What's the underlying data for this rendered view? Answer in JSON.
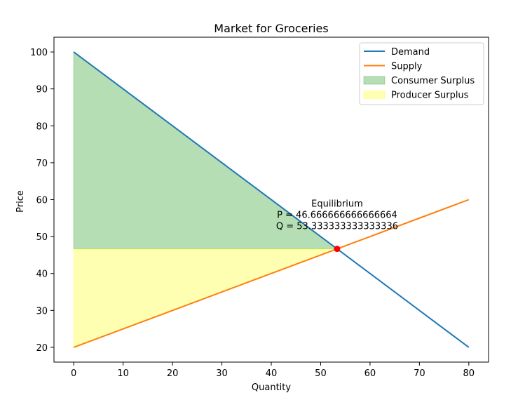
{
  "chart_data": {
    "type": "line",
    "title": "Market for Groceries",
    "xlabel": "Quantity",
    "ylabel": "Price",
    "xlim": [
      -4,
      84
    ],
    "ylim": [
      16,
      104
    ],
    "xticks": [
      0,
      10,
      20,
      30,
      40,
      50,
      60,
      70,
      80
    ],
    "yticks": [
      20,
      30,
      40,
      50,
      60,
      70,
      80,
      90,
      100
    ],
    "grid": false,
    "legend_position": "top-right",
    "series": [
      {
        "name": "Demand",
        "color": "#1f77b4",
        "x": [
          0,
          80
        ],
        "y": [
          100,
          20
        ]
      },
      {
        "name": "Supply",
        "color": "#ff7f0e",
        "x": [
          0,
          80
        ],
        "y": [
          20,
          60
        ]
      }
    ],
    "areas": [
      {
        "name": "Consumer Surplus",
        "color": "#2ca02c",
        "opacity": 0.35,
        "polygon": [
          [
            0,
            100
          ],
          [
            53.333333333333336,
            46.666666666666664
          ],
          [
            0,
            46.666666666666664
          ]
        ]
      },
      {
        "name": "Producer Surplus",
        "color": "#ffff00",
        "opacity": 0.3,
        "polygon": [
          [
            0,
            46.666666666666664
          ],
          [
            53.333333333333336,
            46.666666666666664
          ],
          [
            0,
            20
          ]
        ]
      }
    ],
    "equilibrium": {
      "x": 53.333333333333336,
      "y": 46.666666666666664,
      "color": "#ff0000",
      "label_lines": [
        "Equilibrium",
        "P = 46.666666666666664",
        "Q = 53.333333333333336"
      ]
    }
  }
}
